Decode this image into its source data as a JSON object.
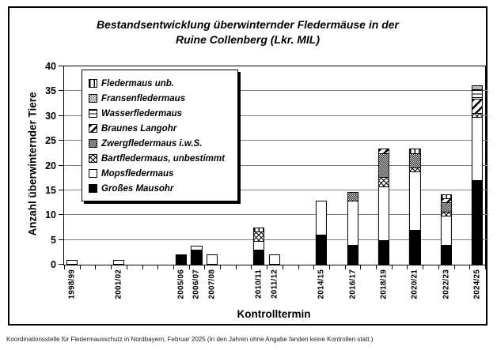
{
  "page": {
    "footer": "Koordinationsstelle für Fledermausschutz in Nordbayern, Februar 2025 (In den Jahren ohne Angabe fanden keine Kontrollen statt.)"
  },
  "chart_data": {
    "type": "bar",
    "stacked": true,
    "title_line1": "Bestandsentwicklung überwinternder Fledermäuse in der",
    "title_line2": "Ruine Collenberg (Lkr. MIL)",
    "xlabel": "Kontrolltermin",
    "ylabel": "Anzahl überwinternder Tiere",
    "ylim": [
      0,
      40
    ],
    "ytick_step": 5,
    "grid": "horizontal",
    "legend_position": "upper-left-inside",
    "total_slots": 27,
    "categories": [
      {
        "label": "1998/99",
        "slot": 0
      },
      {
        "label": "2001/02",
        "slot": 3
      },
      {
        "label": "2005/06",
        "slot": 7
      },
      {
        "label": "2006/07",
        "slot": 8
      },
      {
        "label": "2007/08",
        "slot": 9
      },
      {
        "label": "2010/11",
        "slot": 12
      },
      {
        "label": "2011/12",
        "slot": 13
      },
      {
        "label": "2014/15",
        "slot": 16
      },
      {
        "label": "2016/17",
        "slot": 18
      },
      {
        "label": "2018/19",
        "slot": 20
      },
      {
        "label": "2020/21",
        "slot": 22
      },
      {
        "label": "2022/23",
        "slot": 24
      },
      {
        "label": "2024/25",
        "slot": 26
      }
    ],
    "legend_order": [
      "unb",
      "fransen",
      "wasser",
      "langohr",
      "zwerg",
      "bart",
      "mops",
      "mausohr"
    ],
    "series": [
      {
        "key": "mausohr",
        "name": "Großes Mausohr",
        "pattern": "solid-black",
        "values": [
          0,
          0,
          2,
          3,
          0,
          3,
          0,
          6,
          4,
          5,
          7,
          4,
          17
        ]
      },
      {
        "key": "mops",
        "name": "Mopsfledermaus",
        "pattern": "white",
        "values": [
          1,
          1,
          0,
          1,
          2,
          2,
          2,
          7,
          9,
          11,
          12,
          6,
          13
        ]
      },
      {
        "key": "bart",
        "name": "Bartfledermaus, unbestimmt",
        "pattern": "diagonal-lattice",
        "values": [
          0,
          0,
          0,
          0,
          0,
          2,
          0,
          0,
          0,
          2,
          1,
          1,
          1
        ]
      },
      {
        "key": "zwerg",
        "name": "Zwergfledermaus i.w.S.",
        "pattern": "dense-crosshatch",
        "values": [
          0,
          0,
          0,
          0,
          0,
          0,
          0,
          0,
          2,
          5,
          3,
          2,
          0
        ]
      },
      {
        "key": "langohr",
        "name": "Braunes Langohr",
        "pattern": "diagonal-stripes",
        "values": [
          0,
          0,
          0,
          0,
          0,
          0,
          0,
          0,
          0,
          1,
          0,
          1,
          3
        ]
      },
      {
        "key": "wasser",
        "name": "Wasserfledermaus",
        "pattern": "horizontal-lines",
        "values": [
          0,
          0,
          0,
          0,
          0,
          0,
          0,
          0,
          0,
          0,
          0,
          0,
          2
        ]
      },
      {
        "key": "fransen",
        "name": "Fransenfledermaus",
        "pattern": "speckled",
        "values": [
          0,
          0,
          0,
          0,
          0,
          0,
          0,
          0,
          0,
          0,
          0,
          0,
          1
        ]
      },
      {
        "key": "unb",
        "name": "Fledermaus unb.",
        "pattern": "vertical-lines",
        "values": [
          0,
          0,
          0,
          0,
          0,
          1,
          0,
          0,
          0,
          0,
          1,
          1,
          0
        ]
      }
    ],
    "totals": [
      1,
      1,
      2,
      4,
      2,
      8,
      2,
      13,
      15,
      24,
      24,
      15,
      37
    ],
    "colors": {
      "ink": "#000000",
      "grid": "#7f7f7f",
      "background": "#ffffff"
    }
  }
}
